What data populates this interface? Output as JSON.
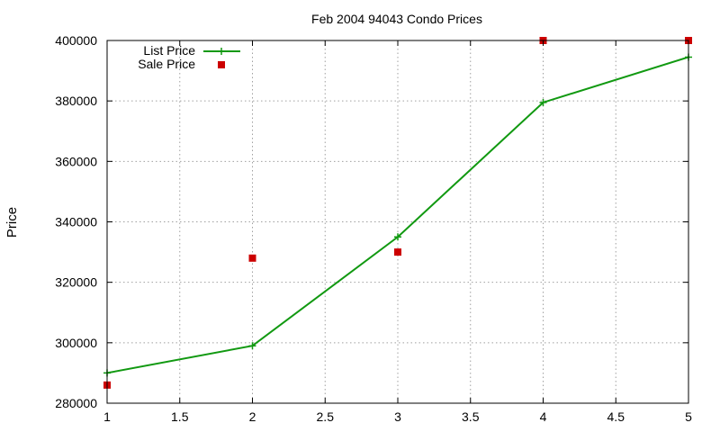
{
  "chart_data": {
    "type": "line",
    "title": "Feb 2004 94043 Condo Prices",
    "xlabel": "",
    "ylabel": "Price",
    "xlim": [
      1,
      5
    ],
    "ylim": [
      280000,
      400000
    ],
    "xticks": [
      1,
      1.5,
      2,
      2.5,
      3,
      3.5,
      4,
      4.5,
      5
    ],
    "xtick_labels": [
      "1",
      "1.5",
      "2",
      "2.5",
      "3",
      "3.5",
      "4",
      "4.5",
      "5"
    ],
    "yticks": [
      280000,
      300000,
      320000,
      340000,
      360000,
      380000,
      400000
    ],
    "ytick_labels": [
      "280000",
      "300000",
      "320000",
      "340000",
      "360000",
      "380000",
      "400000"
    ],
    "grid": true,
    "legend_position": "top-left",
    "series": [
      {
        "name": "List Price",
        "kind": "line-with-plus-markers",
        "color": "#119911",
        "x": [
          1,
          2,
          3,
          4,
          5
        ],
        "y": [
          290000,
          299000,
          335000,
          379500,
          394500
        ]
      },
      {
        "name": "Sale Price",
        "kind": "square-points",
        "color": "#cc0000",
        "x": [
          1,
          2,
          3,
          4,
          5
        ],
        "y": [
          286000,
          328000,
          330000,
          400000,
          400000
        ]
      }
    ]
  }
}
